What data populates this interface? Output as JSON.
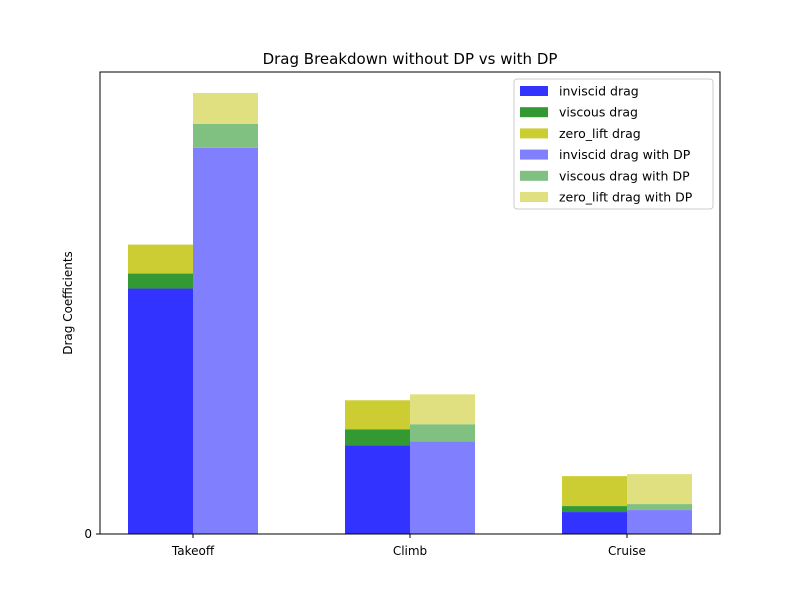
{
  "chart_data": {
    "type": "bar",
    "stacked": true,
    "title": "Drag Breakdown without DP vs with DP",
    "xlabel": "",
    "ylabel": "Drag Coefficients",
    "categories": [
      "Takeoff",
      "Climb",
      "Cruise"
    ],
    "y_ticks": [
      "0"
    ],
    "ylim": [
      0,
      0.0463
    ],
    "grid": false,
    "legend_position": "top-right",
    "groups": [
      {
        "group": "without DP",
        "series": [
          {
            "name": "inviscid drag",
            "color": "#3333ff",
            "values": [
              0.0246,
              0.0089,
              0.0022
            ]
          },
          {
            "name": "viscous drag",
            "color": "#339933",
            "values": [
              0.0015,
              0.0016,
              0.0006
            ]
          },
          {
            "name": "zero_lift drag",
            "color": "#cccc33",
            "values": [
              0.0029,
              0.0029,
              0.003
            ]
          }
        ]
      },
      {
        "group": "with DP",
        "series": [
          {
            "name": "inviscid drag with DP",
            "color": "#8080ff",
            "values": [
              0.0387,
              0.0093,
              0.0024
            ]
          },
          {
            "name": "viscous drag with DP",
            "color": "#80c080",
            "values": [
              0.0024,
              0.0017,
              0.0006
            ]
          },
          {
            "name": "zero_lift drag with DP",
            "color": "#e0e080",
            "values": [
              0.0031,
              0.003,
              0.003
            ]
          }
        ]
      }
    ]
  }
}
